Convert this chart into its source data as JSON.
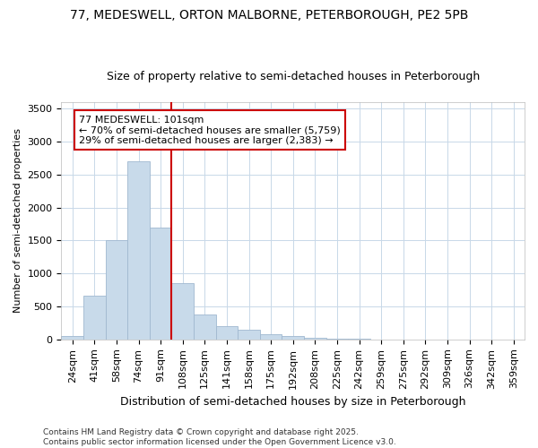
{
  "title_line1": "77, MEDESWELL, ORTON MALBORNE, PETERBOROUGH, PE2 5PB",
  "title_line2": "Size of property relative to semi-detached houses in Peterborough",
  "xlabel": "Distribution of semi-detached houses by size in Peterborough",
  "ylabel": "Number of semi-detached properties",
  "categories": [
    "24sqm",
    "41sqm",
    "58sqm",
    "74sqm",
    "91sqm",
    "108sqm",
    "125sqm",
    "141sqm",
    "158sqm",
    "175sqm",
    "192sqm",
    "208sqm",
    "225sqm",
    "242sqm",
    "259sqm",
    "275sqm",
    "292sqm",
    "309sqm",
    "326sqm",
    "342sqm",
    "359sqm"
  ],
  "values": [
    50,
    670,
    1500,
    2700,
    1700,
    850,
    380,
    200,
    150,
    80,
    50,
    20,
    10,
    5,
    2,
    2,
    1,
    1,
    0,
    0,
    0
  ],
  "bar_color": "#c8daea",
  "bar_edge_color": "#a0b8d0",
  "vline_color": "#cc0000",
  "vline_pos": 5,
  "annotation_text": "77 MEDESWELL: 101sqm\n← 70% of semi-detached houses are smaller (5,759)\n29% of semi-detached houses are larger (2,383) →",
  "annotation_box_color": "#ffffff",
  "annotation_border_color": "#cc0000",
  "ylim": [
    0,
    3600
  ],
  "yticks": [
    0,
    500,
    1000,
    1500,
    2000,
    2500,
    3000,
    3500
  ],
  "footer_line1": "Contains HM Land Registry data © Crown copyright and database right 2025.",
  "footer_line2": "Contains public sector information licensed under the Open Government Licence v3.0.",
  "bg_color": "#ffffff",
  "grid_color": "#c8d8e8",
  "title_fontsize": 10,
  "subtitle_fontsize": 9,
  "annotation_fontsize": 8,
  "xlabel_fontsize": 9,
  "ylabel_fontsize": 8,
  "tick_fontsize": 8,
  "footer_fontsize": 6.5
}
